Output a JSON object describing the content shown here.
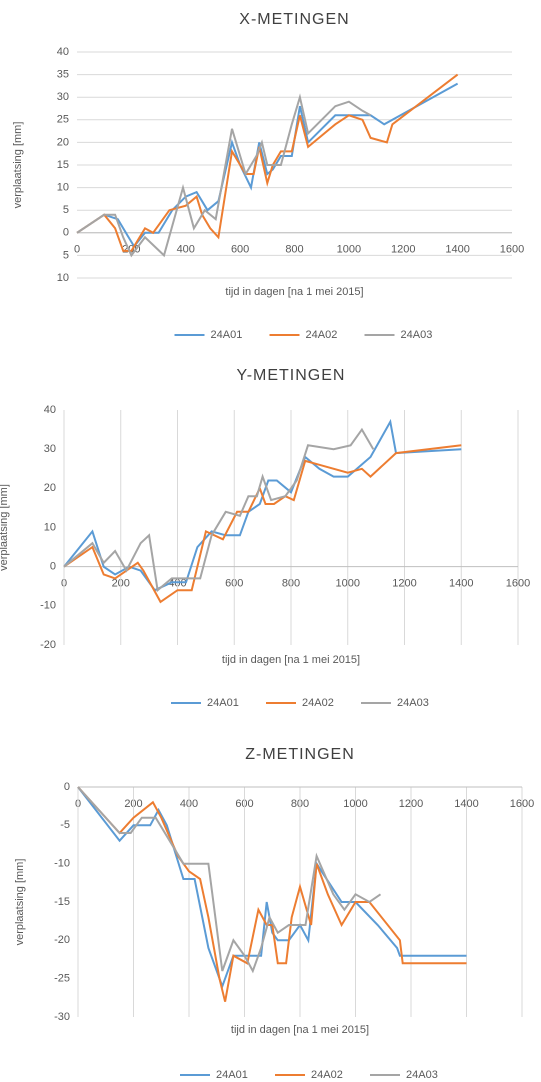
{
  "chart_data": [
    {
      "type": "line",
      "title": "X-METINGEN",
      "x_label": "tijd in dagen [na 1 mei 2015]",
      "y_label": "verplaatsing [mm]",
      "xlim": [
        0,
        1600
      ],
      "ylim": [
        -10,
        40
      ],
      "xticks": [
        0,
        200,
        400,
        600,
        800,
        1000,
        1200,
        1400,
        1600
      ],
      "yticks": [
        {
          "value": -10,
          "label": "10"
        },
        {
          "value": -5,
          "label": "5"
        },
        0,
        5,
        10,
        15,
        20,
        25,
        30,
        35,
        40
      ],
      "grid": "y",
      "series": [
        {
          "name": "24A01",
          "color": "#5b9bd5",
          "x": [
            0,
            100,
            150,
            180,
            210,
            250,
            300,
            350,
            400,
            440,
            480,
            520,
            570,
            600,
            640,
            670,
            700,
            720,
            750,
            790,
            820,
            850,
            950,
            1000,
            1080,
            1130,
            1160,
            1400
          ],
          "values": [
            0,
            4,
            3,
            0,
            -3,
            0,
            0,
            5,
            8,
            9,
            5,
            7,
            20,
            15,
            10,
            20,
            13,
            14,
            17,
            17,
            28,
            20,
            26,
            26,
            26,
            24,
            25,
            33
          ]
        },
        {
          "name": "24A02",
          "color": "#ed7d31",
          "x": [
            0,
            100,
            140,
            170,
            200,
            250,
            280,
            340,
            400,
            440,
            460,
            490,
            520,
            570,
            620,
            650,
            670,
            700,
            720,
            750,
            790,
            820,
            850,
            950,
            1000,
            1050,
            1080,
            1140,
            1160,
            1400
          ],
          "values": [
            0,
            4,
            1,
            -4,
            -4,
            1,
            0,
            5,
            6,
            8,
            4,
            1,
            -1,
            18,
            13,
            13,
            19,
            11,
            15,
            18,
            18,
            26,
            19,
            24,
            26,
            25,
            21,
            20,
            24,
            35
          ]
        },
        {
          "name": "24A03",
          "color": "#a5a5a5",
          "x": [
            0,
            100,
            140,
            170,
            200,
            250,
            320,
            390,
            430,
            470,
            510,
            570,
            620,
            660,
            680,
            700,
            750,
            790,
            820,
            850,
            950,
            1000,
            1050,
            1080
          ],
          "values": [
            0,
            4,
            4,
            -1,
            -5,
            -1,
            -5,
            10,
            1,
            5,
            3,
            23,
            13,
            17,
            20,
            15,
            15,
            24,
            30,
            22,
            28,
            29,
            27,
            26
          ]
        }
      ]
    },
    {
      "type": "line",
      "title": "Y-METINGEN",
      "x_label": "tijd in dagen [na 1 mei 2015]",
      "y_label": "verplaatsing [mm]",
      "xlim": [
        0,
        1600
      ],
      "ylim": [
        -20,
        40
      ],
      "xticks": [
        0,
        200,
        400,
        600,
        800,
        1000,
        1200,
        1400,
        1600
      ],
      "yticks": [
        -20,
        -10,
        0,
        10,
        20,
        30,
        40
      ],
      "grid": "x",
      "series": [
        {
          "name": "24A01",
          "color": "#5b9bd5",
          "x": [
            0,
            100,
            140,
            180,
            230,
            270,
            320,
            380,
            430,
            470,
            520,
            570,
            620,
            650,
            690,
            720,
            750,
            800,
            850,
            900,
            950,
            1000,
            1080,
            1150,
            1170,
            1400
          ],
          "values": [
            0,
            9,
            0,
            -2,
            0,
            -1,
            -6,
            -4,
            -4,
            5,
            9,
            8,
            8,
            14,
            16,
            22,
            22,
            19,
            28,
            25,
            23,
            23,
            28,
            37,
            29,
            30
          ]
        },
        {
          "name": "24A02",
          "color": "#ed7d31",
          "x": [
            0,
            100,
            140,
            180,
            260,
            280,
            340,
            400,
            450,
            500,
            560,
            610,
            650,
            690,
            710,
            740,
            780,
            810,
            850,
            900,
            1000,
            1050,
            1080,
            1170,
            1400
          ],
          "values": [
            0,
            5,
            -2,
            -3,
            1,
            -1,
            -9,
            -6,
            -6,
            9,
            7,
            14,
            14,
            20,
            16,
            16,
            18,
            17,
            27,
            26,
            24,
            25,
            23,
            29,
            31
          ]
        },
        {
          "name": "24A03",
          "color": "#a5a5a5",
          "x": [
            0,
            100,
            140,
            180,
            220,
            270,
            300,
            330,
            380,
            430,
            480,
            520,
            570,
            620,
            650,
            680,
            700,
            730,
            780,
            820,
            860,
            950,
            1010,
            1050,
            1090
          ],
          "values": [
            0,
            6,
            1,
            4,
            -1,
            6,
            8,
            -6,
            -3,
            -3,
            -3,
            8,
            14,
            13,
            18,
            18,
            23,
            17,
            18,
            22,
            31,
            30,
            31,
            35,
            30
          ]
        }
      ]
    },
    {
      "type": "line",
      "title": "Z-METINGEN",
      "x_label": "tijd in dagen [na 1 mei 2015]",
      "y_label": "verplaatsing [mm]",
      "xlim": [
        0,
        1600
      ],
      "ylim": [
        -30,
        0
      ],
      "xticks": [
        0,
        200,
        400,
        600,
        800,
        1000,
        1200,
        1400,
        1600
      ],
      "yticks": [
        -30,
        -25,
        -20,
        -15,
        -10,
        -5,
        0
      ],
      "grid": "x",
      "series": [
        {
          "name": "24A01",
          "color": "#5b9bd5",
          "x": [
            0,
            150,
            200,
            260,
            290,
            320,
            380,
            420,
            470,
            520,
            560,
            620,
            660,
            680,
            700,
            720,
            760,
            800,
            830,
            860,
            950,
            1000,
            1080,
            1150,
            1160,
            1400
          ],
          "values": [
            0,
            -7,
            -5,
            -5,
            -3,
            -5,
            -12,
            -12,
            -21,
            -26,
            -22,
            -22,
            -22,
            -15,
            -19,
            -20,
            -20,
            -18,
            -20,
            -10,
            -15,
            -15,
            -18,
            -21,
            -22,
            -22
          ]
        },
        {
          "name": "24A02",
          "color": "#ed7d31",
          "x": [
            0,
            150,
            200,
            270,
            300,
            360,
            400,
            440,
            470,
            510,
            530,
            560,
            610,
            650,
            680,
            700,
            720,
            750,
            770,
            800,
            840,
            860,
            900,
            950,
            1000,
            1050,
            1160,
            1170,
            1400
          ],
          "values": [
            0,
            -6,
            -4,
            -2,
            -4,
            -9,
            -11,
            -12,
            -17,
            -25,
            -28,
            -22,
            -23,
            -16,
            -18,
            -18,
            -23,
            -23,
            -17,
            -13,
            -18,
            -10,
            -14,
            -18,
            -15,
            -15,
            -20,
            -23,
            -23
          ]
        },
        {
          "name": "24A03",
          "color": "#a5a5a5",
          "x": [
            0,
            150,
            190,
            230,
            280,
            330,
            380,
            470,
            520,
            560,
            600,
            630,
            660,
            690,
            720,
            760,
            820,
            860,
            920,
            960,
            1000,
            1050,
            1090
          ],
          "values": [
            0,
            -6,
            -6,
            -4,
            -4,
            -7,
            -10,
            -10,
            -24,
            -20,
            -22,
            -24,
            -21,
            -17,
            -19,
            -18,
            -18,
            -9,
            -14,
            -16,
            -14,
            -15,
            -14
          ]
        }
      ]
    }
  ]
}
